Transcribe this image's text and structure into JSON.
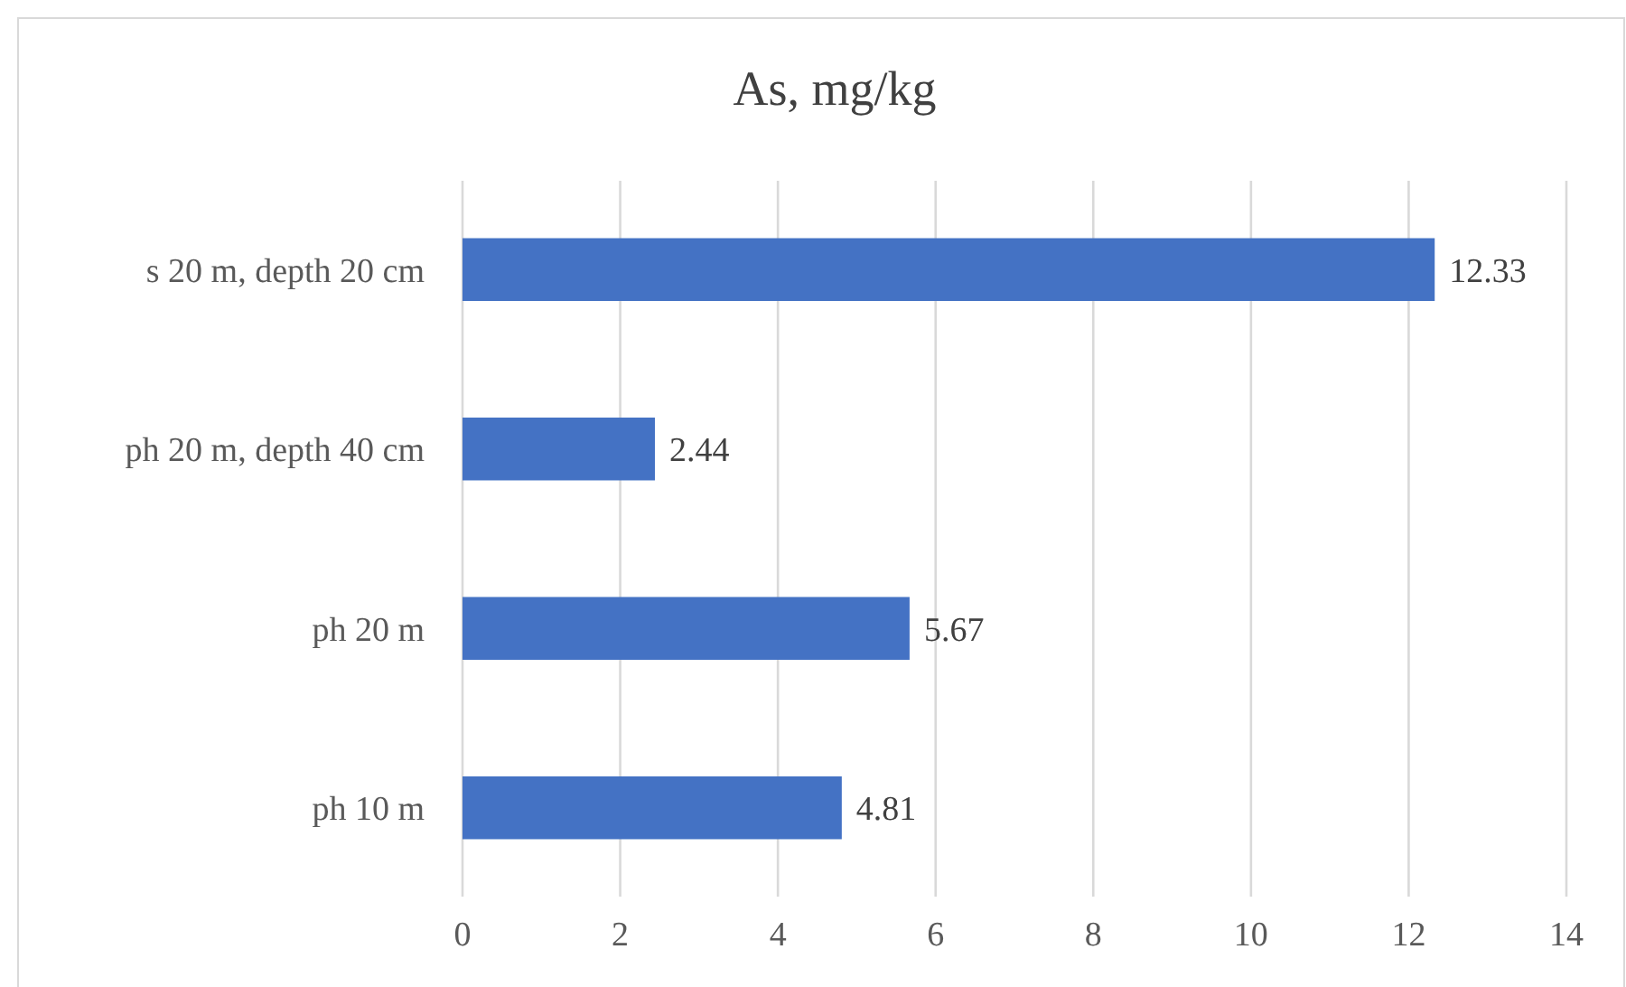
{
  "chart_data": {
    "type": "bar",
    "orientation": "horizontal",
    "title": "As, mg/kg",
    "categories": [
      "s 20 m, depth 20 cm",
      "ph 20 m, depth 40 cm",
      "ph 20 m",
      "ph 10 m"
    ],
    "values": [
      12.33,
      2.44,
      5.67,
      4.81
    ],
    "color": "#4472c4",
    "xlim": [
      0,
      14
    ],
    "xticks": [
      0,
      2,
      4,
      6,
      8,
      10,
      12,
      14
    ],
    "grid": "x",
    "data_labels": true
  }
}
